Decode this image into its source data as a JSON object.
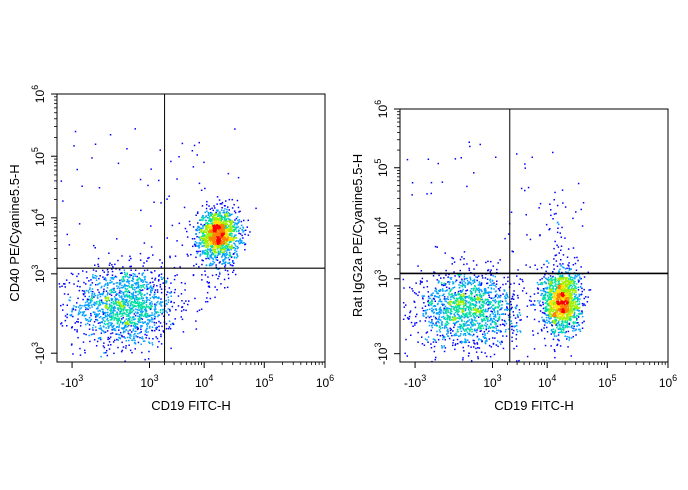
{
  "colors": {
    "axis": "#000000",
    "gate": "#000000",
    "density_scale": [
      "#0000ff",
      "#00a0ff",
      "#00e0a0",
      "#a0f000",
      "#ffe000",
      "#ff8000",
      "#ff0000"
    ]
  },
  "chart_data": [
    {
      "type": "scatter",
      "title": "",
      "xlabel": "CD19 FITC-H",
      "ylabel": "CD40 PE/Cyanine5.5-H",
      "x_scale": "biexponential",
      "y_scale": "biexponential",
      "xlim": [
        -2000,
        1000000
      ],
      "ylim": [
        -1500,
        1000000
      ],
      "x_ticks": [
        {
          "base": "-10",
          "exp": "3",
          "value": -1000
        },
        {
          "base": "10",
          "exp": "3",
          "value": 1000
        },
        {
          "base": "10",
          "exp": "4",
          "value": 10000
        },
        {
          "base": "10",
          "exp": "5",
          "value": 100000
        },
        {
          "base": "10",
          "exp": "6",
          "value": 1000000
        }
      ],
      "y_ticks": [
        {
          "base": "-10",
          "exp": "3",
          "value": -1000
        },
        {
          "base": "10",
          "exp": "3",
          "value": 1000
        },
        {
          "base": "10",
          "exp": "4",
          "value": 10000
        },
        {
          "base": "10",
          "exp": "5",
          "value": 100000
        },
        {
          "base": "10",
          "exp": "6",
          "value": 1000000
        }
      ],
      "gate": {
        "x": 2000,
        "y": 1300
      },
      "populations": [
        {
          "center_x": 200,
          "center_y": 100,
          "density": "high"
        },
        {
          "center_x": 17000,
          "center_y": 5500,
          "density": "high"
        }
      ]
    },
    {
      "type": "scatter",
      "title": "",
      "xlabel": "CD19 FITC-H",
      "ylabel": "Rat IgG2a PE/Cyanine5.5-H",
      "x_scale": "biexponential",
      "y_scale": "biexponential",
      "xlim": [
        -2000,
        1000000
      ],
      "ylim": [
        -1500,
        1000000
      ],
      "x_ticks": [
        {
          "base": "-10",
          "exp": "3",
          "value": -1000
        },
        {
          "base": "10",
          "exp": "3",
          "value": 1000
        },
        {
          "base": "10",
          "exp": "4",
          "value": 10000
        },
        {
          "base": "10",
          "exp": "5",
          "value": 100000
        },
        {
          "base": "10",
          "exp": "6",
          "value": 1000000
        }
      ],
      "y_ticks": [
        {
          "base": "-10",
          "exp": "3",
          "value": -1000
        },
        {
          "base": "10",
          "exp": "3",
          "value": 1000
        },
        {
          "base": "10",
          "exp": "4",
          "value": 10000
        },
        {
          "base": "10",
          "exp": "5",
          "value": 100000
        },
        {
          "base": "10",
          "exp": "6",
          "value": 1000000
        }
      ],
      "gate": {
        "x": 2200,
        "y": 1300
      },
      "populations": [
        {
          "center_x": 200,
          "center_y": 100,
          "density": "high"
        },
        {
          "center_x": 17000,
          "center_y": 250,
          "density": "high"
        }
      ]
    }
  ]
}
